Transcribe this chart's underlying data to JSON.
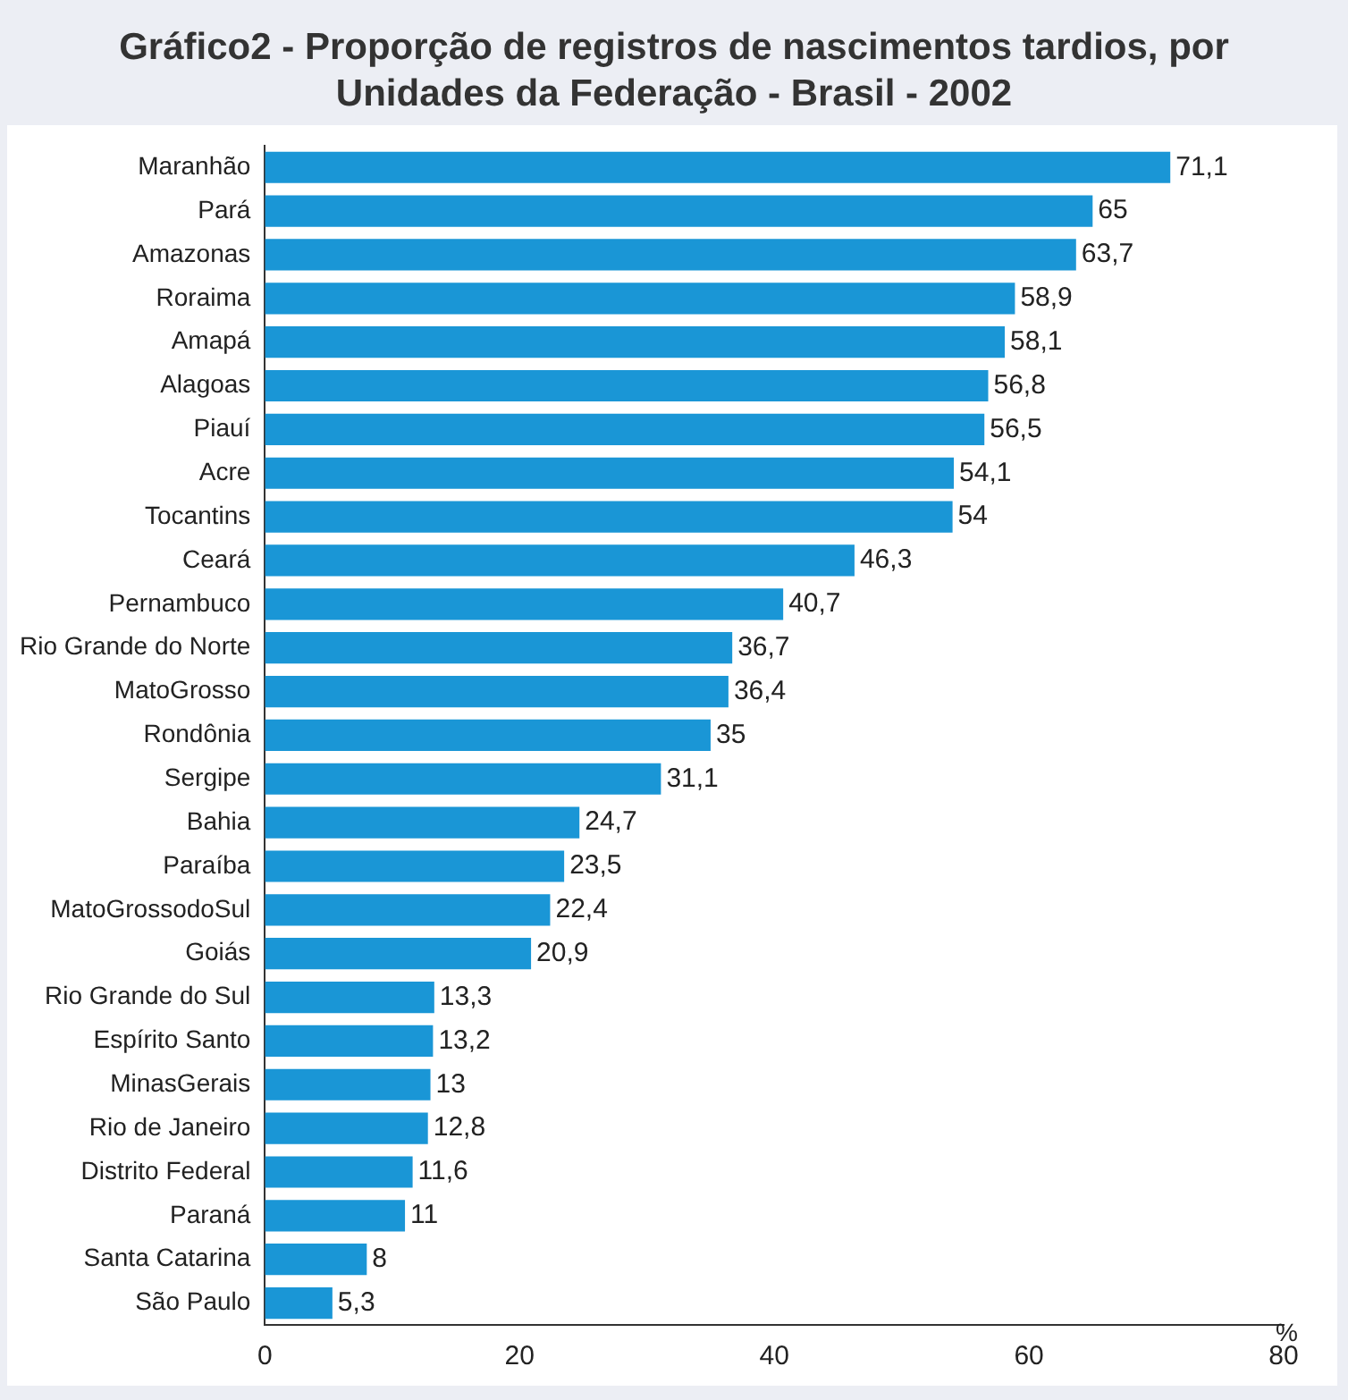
{
  "chart_data": {
    "type": "bar",
    "orientation": "horizontal",
    "title": "Gráfico2 - Proporção de registros de nascimentos tardios, por Unidades da Federação - Brasil - 2002",
    "xlabel": "%",
    "categories": [
      "Maranhão",
      "Pará",
      "Amazonas",
      "Roraima",
      "Amapá",
      "Alagoas",
      "Piauí",
      "Acre",
      "Tocantins",
      "Ceará",
      "Pernambuco",
      "Rio Grande do Norte",
      "MatoGrosso",
      "Rondônia",
      "Sergipe",
      "Bahia",
      "Paraíba",
      "MatoGrossodoSul",
      "Goiás",
      "Rio Grande do Sul",
      "Espírito Santo",
      "MinasGerais",
      "Rio de Janeiro",
      "Distrito Federal",
      "Paraná",
      "Santa Catarina",
      "São Paulo"
    ],
    "values": [
      71.1,
      65,
      63.7,
      58.9,
      58.1,
      56.8,
      56.5,
      54.1,
      54,
      46.3,
      40.7,
      36.7,
      36.4,
      35,
      31.1,
      24.7,
      23.5,
      22.4,
      20.9,
      13.3,
      13.2,
      13,
      12.8,
      11.6,
      11,
      8,
      5.3
    ],
    "value_labels": [
      "71,1",
      "65",
      "63,7",
      "58,9",
      "58,1",
      "56,8",
      "56,5",
      "54,1",
      "54",
      "46,3",
      "40,7",
      "36,7",
      "36,4",
      "35",
      "31,1",
      "24,7",
      "23,5",
      "22,4",
      "20,9",
      "13,3",
      "13,2",
      "13",
      "12,8",
      "11,6",
      "11",
      "8",
      "5,3"
    ],
    "color": "#1a96d6",
    "xlim": [
      0,
      80
    ],
    "xticks": [
      0,
      20,
      40,
      60,
      80
    ],
    "grid": false,
    "legend": false
  }
}
